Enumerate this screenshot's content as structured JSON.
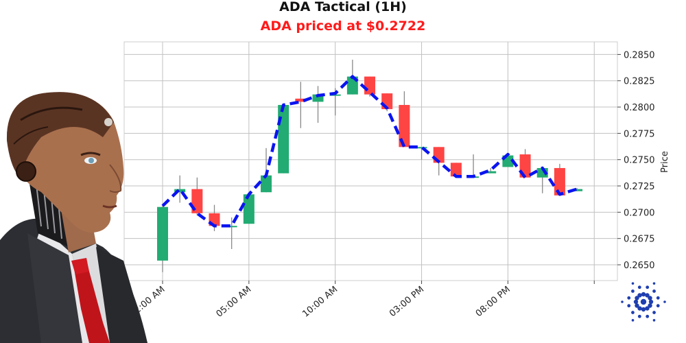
{
  "chart_data": {
    "type": "candlestick",
    "title": "ADA Tactical (1H)",
    "subtitle": "ADA priced at $0.2722",
    "ylabel": "Price",
    "ylim": [
      0.2635,
      0.2862
    ],
    "grid": true,
    "y_ticks": [
      0.265,
      0.2675,
      0.27,
      0.2725,
      0.275,
      0.2775,
      0.28,
      0.2825,
      0.285
    ],
    "y_tick_labels": [
      "0.2650",
      "0.2675",
      "0.2700",
      "0.2725",
      "0.2750",
      "0.2775",
      "0.2800",
      "0.2825",
      "0.2850"
    ],
    "x_tick_labels": [
      "12:00 AM",
      "05:00 AM",
      "10:00 AM",
      "03:00 PM",
      "08:00 PM"
    ],
    "x_tick_hours": [
      0,
      5,
      10,
      15,
      20,
      25
    ],
    "colors": {
      "up": "#22ab72",
      "down": "#ff4444",
      "wick": "#888888",
      "trend": "#0a14f0",
      "grid": "#c0c0c0"
    },
    "candles": [
      {
        "hour": 0,
        "open": 0.2654,
        "close": 0.2705,
        "high": 0.2706,
        "low": 0.2643
      },
      {
        "hour": 1,
        "open": 0.2719,
        "close": 0.2722,
        "high": 0.2735,
        "low": 0.2709
      },
      {
        "hour": 2,
        "open": 0.2722,
        "close": 0.2699,
        "high": 0.2733,
        "low": 0.2697
      },
      {
        "hour": 3,
        "open": 0.2699,
        "close": 0.2687,
        "high": 0.2707,
        "low": 0.2682
      },
      {
        "hour": 4,
        "open": 0.2687,
        "close": 0.2687,
        "high": 0.2695,
        "low": 0.2665
      },
      {
        "hour": 5,
        "open": 0.2689,
        "close": 0.2717,
        "high": 0.2717,
        "low": 0.2689
      },
      {
        "hour": 6,
        "open": 0.2719,
        "close": 0.2735,
        "high": 0.2761,
        "low": 0.2719
      },
      {
        "hour": 7,
        "open": 0.2737,
        "close": 0.2802,
        "high": 0.2802,
        "low": 0.2737
      },
      {
        "hour": 8,
        "open": 0.2808,
        "close": 0.2805,
        "high": 0.2824,
        "low": 0.278
      },
      {
        "hour": 9,
        "open": 0.2805,
        "close": 0.2812,
        "high": 0.282,
        "low": 0.2785
      },
      {
        "hour": 10,
        "open": 0.2812,
        "close": 0.2812,
        "high": 0.2818,
        "low": 0.2792
      },
      {
        "hour": 11,
        "open": 0.2812,
        "close": 0.2829,
        "high": 0.2845,
        "low": 0.2812
      },
      {
        "hour": 12,
        "open": 0.2829,
        "close": 0.2812,
        "high": 0.2829,
        "low": 0.281
      },
      {
        "hour": 13,
        "open": 0.2813,
        "close": 0.2798,
        "high": 0.2813,
        "low": 0.2796
      },
      {
        "hour": 14,
        "open": 0.2802,
        "close": 0.2762,
        "high": 0.2815,
        "low": 0.2762
      },
      {
        "hour": 15,
        "open": 0.2762,
        "close": 0.2762,
        "high": 0.2762,
        "low": 0.275
      },
      {
        "hour": 16,
        "open": 0.2762,
        "close": 0.2747,
        "high": 0.2762,
        "low": 0.2735
      },
      {
        "hour": 17,
        "open": 0.2747,
        "close": 0.2734,
        "high": 0.2747,
        "low": 0.2734
      },
      {
        "hour": 18,
        "open": 0.2734,
        "close": 0.2734,
        "high": 0.2755,
        "low": 0.2734
      },
      {
        "hour": 19,
        "open": 0.2737,
        "close": 0.2739,
        "high": 0.2742,
        "low": 0.2737
      },
      {
        "hour": 20,
        "open": 0.2743,
        "close": 0.2754,
        "high": 0.2755,
        "low": 0.2743
      },
      {
        "hour": 21,
        "open": 0.2755,
        "close": 0.2733,
        "high": 0.276,
        "low": 0.2733
      },
      {
        "hour": 22,
        "open": 0.2733,
        "close": 0.2742,
        "high": 0.2742,
        "low": 0.2718
      },
      {
        "hour": 23,
        "open": 0.2742,
        "close": 0.2716,
        "high": 0.2746,
        "low": 0.2716
      },
      {
        "hour": 24,
        "open": 0.272,
        "close": 0.2722,
        "high": 0.2723,
        "low": 0.272
      }
    ],
    "trend_line": [
      [
        0,
        0.2706
      ],
      [
        1,
        0.2722
      ],
      [
        2,
        0.2699
      ],
      [
        3,
        0.2687
      ],
      [
        4,
        0.2687
      ],
      [
        5,
        0.2717
      ],
      [
        6,
        0.2735
      ],
      [
        7,
        0.2802
      ],
      [
        8,
        0.2805
      ],
      [
        9,
        0.2811
      ],
      [
        10,
        0.2813
      ],
      [
        11,
        0.2829
      ],
      [
        12,
        0.2814
      ],
      [
        13,
        0.2799
      ],
      [
        14,
        0.2762
      ],
      [
        15,
        0.2762
      ],
      [
        16,
        0.2748
      ],
      [
        17,
        0.2734
      ],
      [
        18,
        0.2734
      ],
      [
        19,
        0.274
      ],
      [
        20,
        0.2755
      ],
      [
        21,
        0.2733
      ],
      [
        22,
        0.2742
      ],
      [
        23,
        0.2717
      ],
      [
        24,
        0.2722
      ]
    ]
  },
  "branding": {
    "avatar_icon": "robot-businessman-avatar",
    "logo_icon": "cardano-logo-icon"
  }
}
